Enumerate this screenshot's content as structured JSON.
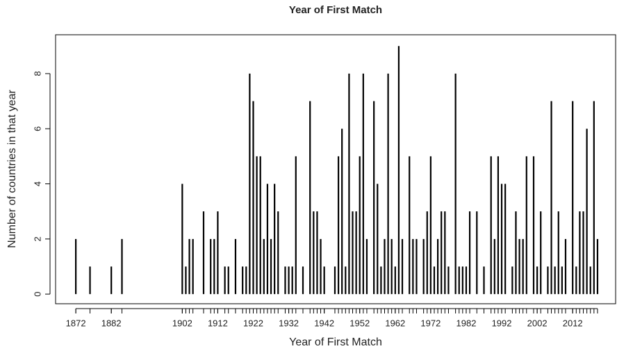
{
  "chart_data": {
    "type": "bar",
    "title": "Year of First Match",
    "x_label": "Year of First Match",
    "y_label": "Number of countries in that year",
    "color": "#000000",
    "x": [
      1872,
      1876,
      1882,
      1885,
      1902,
      1903,
      1904,
      1905,
      1908,
      1910,
      1911,
      1912,
      1914,
      1915,
      1917,
      1919,
      1920,
      1921,
      1922,
      1923,
      1924,
      1925,
      1926,
      1927,
      1928,
      1929,
      1931,
      1932,
      1933,
      1934,
      1936,
      1938,
      1939,
      1940,
      1941,
      1942,
      1945,
      1946,
      1947,
      1948,
      1949,
      1950,
      1951,
      1952,
      1953,
      1954,
      1956,
      1957,
      1958,
      1959,
      1960,
      1961,
      1962,
      1963,
      1964,
      1966,
      1967,
      1968,
      1970,
      1971,
      1972,
      1973,
      1974,
      1975,
      1976,
      1977,
      1979,
      1980,
      1981,
      1982,
      1983,
      1985,
      1987,
      1989,
      1990,
      1991,
      1992,
      1993,
      1995,
      1996,
      1997,
      1998,
      1999,
      2001,
      2002,
      2003,
      2005,
      2006,
      2007,
      2008,
      2009,
      2010,
      2012,
      2013,
      2014,
      2015,
      2016,
      2017,
      2018,
      2019
    ],
    "values": [
      2,
      1,
      1,
      2,
      4,
      1,
      2,
      2,
      3,
      2,
      2,
      3,
      1,
      1,
      2,
      1,
      1,
      8,
      7,
      5,
      5,
      2,
      4,
      2,
      4,
      3,
      1,
      1,
      1,
      5,
      1,
      7,
      3,
      3,
      2,
      1,
      1,
      5,
      6,
      1,
      8,
      3,
      3,
      5,
      8,
      2,
      7,
      4,
      1,
      2,
      8,
      2,
      1,
      9,
      2,
      5,
      2,
      2,
      2,
      3,
      5,
      1,
      2,
      3,
      3,
      1,
      8,
      1,
      1,
      1,
      3,
      3,
      1,
      5,
      2,
      5,
      4,
      4,
      1,
      3,
      2,
      2,
      5,
      5,
      1,
      3,
      1,
      7,
      1,
      3,
      1,
      2,
      7,
      1,
      3,
      3,
      6,
      1,
      7,
      2
    ],
    "xlim": [
      1866.3,
      2024.1
    ],
    "xticks": [
      1872,
      1882,
      1902,
      1912,
      1922,
      1932,
      1942,
      1952,
      1962,
      1972,
      1982,
      1992,
      2002,
      2012
    ],
    "ylim": [
      -0.35,
      9.41
    ],
    "yticks": [
      0,
      2,
      4,
      6,
      8
    ]
  }
}
